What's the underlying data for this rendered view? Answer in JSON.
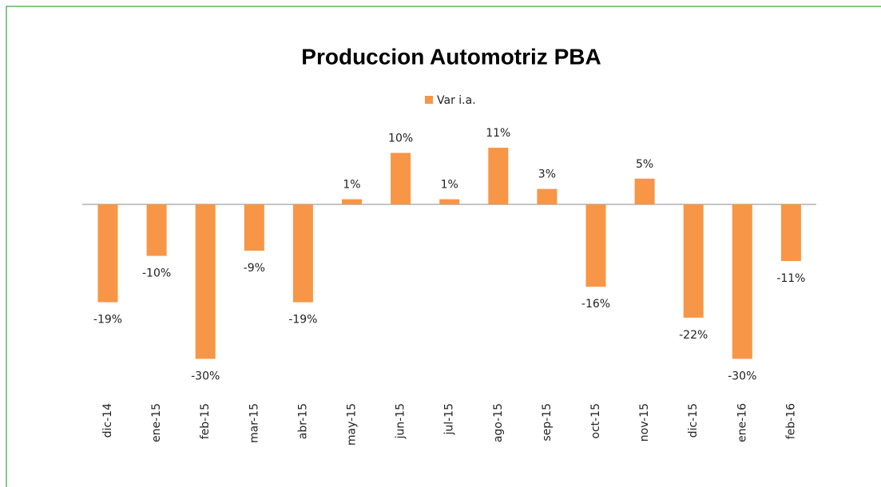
{
  "chart_data": {
    "type": "bar",
    "title": "Produccion Automotriz PBA",
    "categories": [
      "dic-14",
      "ene-15",
      "feb-15",
      "mar-15",
      "abr-15",
      "may-15",
      "jun-15",
      "jul-15",
      "ago-15",
      "sep-15",
      "oct-15",
      "nov-15",
      "dic-15",
      "ene-16",
      "feb-16"
    ],
    "series": [
      {
        "name": "Var i.a.",
        "color": "#f79646",
        "values": [
          -19,
          -10,
          -30,
          -9,
          -19,
          1,
          10,
          1,
          11,
          3,
          -16,
          5,
          -22,
          -30,
          -11
        ],
        "value_labels": [
          "-19%",
          "-10%",
          "-30%",
          "-9%",
          "-19%",
          "1%",
          "10%",
          "1%",
          "11%",
          "3%",
          "-16%",
          "5%",
          "-22%",
          "-30%",
          "-11%"
        ]
      }
    ],
    "legend": "top"
  }
}
